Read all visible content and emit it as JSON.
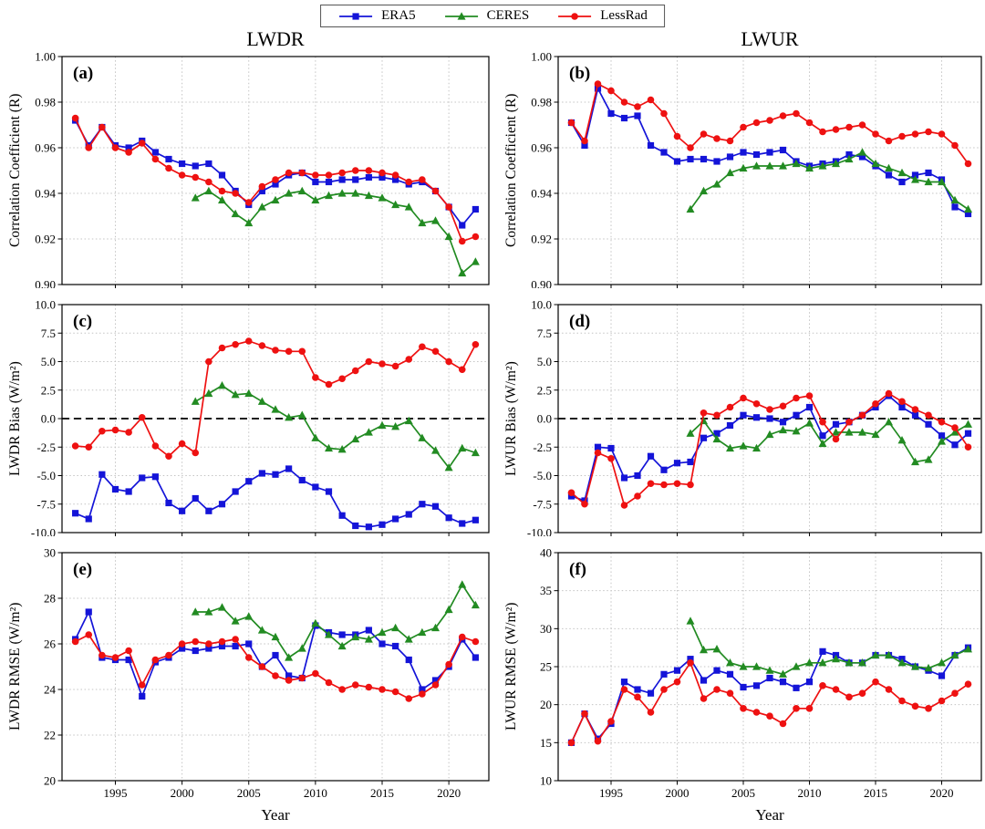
{
  "figure": {
    "legend": {
      "items": [
        {
          "label": "ERA5",
          "color": "#1414D8",
          "marker": "square"
        },
        {
          "label": "CERES",
          "color": "#228B22",
          "marker": "triangle"
        },
        {
          "label": "LessRad",
          "color": "#EE1111",
          "marker": "circle"
        }
      ]
    },
    "column_titles": {
      "left": "LWDR",
      "right": "LWUR"
    },
    "xlabel": "Year"
  },
  "chart_data": [
    {
      "type": "line",
      "panel_label": "(a)",
      "title": "LWDR",
      "ylabel": "Correlation Coefficient (R)",
      "xlabel": "",
      "ylim": [
        0.9,
        1.0
      ],
      "yticks": [
        0.9,
        0.92,
        0.94,
        0.96,
        0.98,
        1.0
      ],
      "y_decimals": 2,
      "xlim": [
        1991,
        2023
      ],
      "xticks": [
        1995,
        2000,
        2005,
        2010,
        2015,
        2020
      ],
      "show_x_tick_labels": false,
      "zero_line": false,
      "grid": true,
      "series": [
        {
          "name": "ERA5",
          "color": "#1414D8",
          "marker": "square",
          "x_start": 1992,
          "values": [
            0.972,
            0.961,
            0.969,
            0.961,
            0.96,
            0.963,
            0.958,
            0.955,
            0.953,
            0.952,
            0.953,
            0.948,
            0.941,
            0.935,
            0.941,
            0.944,
            0.948,
            0.949,
            0.945,
            0.945,
            0.946,
            0.946,
            0.947,
            0.947,
            0.946,
            0.944,
            0.945,
            0.941,
            0.934,
            0.926,
            0.933
          ]
        },
        {
          "name": "CERES",
          "color": "#228B22",
          "marker": "triangle",
          "x_start": 2001,
          "values": [
            0.938,
            0.941,
            0.937,
            0.931,
            0.927,
            0.934,
            0.937,
            0.94,
            0.941,
            0.937,
            0.939,
            0.94,
            0.94,
            0.939,
            0.938,
            0.935,
            0.934,
            0.927,
            0.928,
            0.921,
            0.905,
            0.91
          ]
        },
        {
          "name": "LessRad",
          "color": "#EE1111",
          "marker": "circle",
          "x_start": 1992,
          "values": [
            0.973,
            0.96,
            0.969,
            0.96,
            0.958,
            0.962,
            0.955,
            0.951,
            0.948,
            0.947,
            0.945,
            0.941,
            0.94,
            0.936,
            0.943,
            0.946,
            0.949,
            0.949,
            0.948,
            0.948,
            0.949,
            0.95,
            0.95,
            0.949,
            0.948,
            0.945,
            0.946,
            0.941,
            0.934,
            0.919,
            0.921
          ]
        }
      ]
    },
    {
      "type": "line",
      "panel_label": "(b)",
      "title": "LWUR",
      "ylabel": "Correlation Coefficient (R)",
      "xlabel": "",
      "ylim": [
        0.9,
        1.0
      ],
      "yticks": [
        0.9,
        0.92,
        0.94,
        0.96,
        0.98,
        1.0
      ],
      "y_decimals": 2,
      "xlim": [
        1991,
        2023
      ],
      "xticks": [
        1995,
        2000,
        2005,
        2010,
        2015,
        2020
      ],
      "show_x_tick_labels": false,
      "zero_line": false,
      "grid": true,
      "series": [
        {
          "name": "ERA5",
          "color": "#1414D8",
          "marker": "square",
          "x_start": 1992,
          "values": [
            0.971,
            0.961,
            0.986,
            0.975,
            0.973,
            0.974,
            0.961,
            0.958,
            0.954,
            0.955,
            0.955,
            0.954,
            0.956,
            0.958,
            0.957,
            0.958,
            0.959,
            0.954,
            0.952,
            0.953,
            0.954,
            0.957,
            0.956,
            0.952,
            0.948,
            0.945,
            0.948,
            0.949,
            0.946,
            0.934,
            0.931
          ]
        },
        {
          "name": "CERES",
          "color": "#228B22",
          "marker": "triangle",
          "x_start": 2001,
          "values": [
            0.933,
            0.941,
            0.944,
            0.949,
            0.951,
            0.952,
            0.952,
            0.952,
            0.953,
            0.951,
            0.952,
            0.953,
            0.955,
            0.958,
            0.953,
            0.951,
            0.949,
            0.946,
            0.945,
            0.945,
            0.937,
            0.933
          ]
        },
        {
          "name": "LessRad",
          "color": "#EE1111",
          "marker": "circle",
          "x_start": 1992,
          "values": [
            0.971,
            0.963,
            0.988,
            0.985,
            0.98,
            0.978,
            0.981,
            0.975,
            0.965,
            0.96,
            0.966,
            0.964,
            0.963,
            0.969,
            0.971,
            0.972,
            0.974,
            0.975,
            0.971,
            0.967,
            0.968,
            0.969,
            0.97,
            0.966,
            0.963,
            0.965,
            0.966,
            0.967,
            0.966,
            0.961,
            0.953
          ]
        }
      ]
    },
    {
      "type": "line",
      "panel_label": "(c)",
      "title": "LWDR",
      "ylabel": "LWDR Bias (W/m²)",
      "xlabel": "",
      "ylim": [
        -10.0,
        10.0
      ],
      "yticks": [
        -10.0,
        -7.5,
        -5.0,
        -2.5,
        0.0,
        2.5,
        5.0,
        7.5,
        10.0
      ],
      "y_decimals": 1,
      "xlim": [
        1991,
        2023
      ],
      "xticks": [
        1995,
        2000,
        2005,
        2010,
        2015,
        2020
      ],
      "show_x_tick_labels": false,
      "zero_line": true,
      "grid": true,
      "series": [
        {
          "name": "ERA5",
          "color": "#1414D8",
          "marker": "square",
          "x_start": 1992,
          "values": [
            -8.3,
            -8.8,
            -4.9,
            -6.2,
            -6.4,
            -5.2,
            -5.1,
            -7.4,
            -8.1,
            -7.0,
            -8.1,
            -7.5,
            -6.4,
            -5.5,
            -4.8,
            -4.9,
            -4.4,
            -5.4,
            -6.0,
            -6.4,
            -8.5,
            -9.4,
            -9.5,
            -9.3,
            -8.8,
            -8.4,
            -7.5,
            -7.7,
            -8.7,
            -9.2,
            -8.9
          ]
        },
        {
          "name": "CERES",
          "color": "#228B22",
          "marker": "triangle",
          "x_start": 2001,
          "values": [
            1.5,
            2.2,
            2.9,
            2.1,
            2.2,
            1.5,
            0.8,
            0.1,
            0.3,
            -1.7,
            -2.6,
            -2.7,
            -1.8,
            -1.2,
            -0.6,
            -0.7,
            -0.2,
            -1.7,
            -2.8,
            -4.3,
            -2.6,
            -3.0
          ]
        },
        {
          "name": "LessRad",
          "color": "#EE1111",
          "marker": "circle",
          "x_start": 1992,
          "values": [
            -2.4,
            -2.5,
            -1.1,
            -1.0,
            -1.2,
            0.1,
            -2.4,
            -3.3,
            -2.2,
            -3.0,
            5.0,
            6.2,
            6.5,
            6.8,
            6.4,
            6.0,
            5.9,
            5.9,
            3.6,
            3.0,
            3.5,
            4.2,
            5.0,
            4.8,
            4.6,
            5.2,
            6.3,
            5.9,
            5.0,
            4.3,
            6.5
          ]
        }
      ]
    },
    {
      "type": "line",
      "panel_label": "(d)",
      "title": "LWUR",
      "ylabel": "LWUR Bias (W/m²)",
      "xlabel": "",
      "ylim": [
        -10.0,
        10.0
      ],
      "yticks": [
        -10.0,
        -7.5,
        -5.0,
        -2.5,
        0.0,
        2.5,
        5.0,
        7.5,
        10.0
      ],
      "y_decimals": 1,
      "xlim": [
        1991,
        2023
      ],
      "xticks": [
        1995,
        2000,
        2005,
        2010,
        2015,
        2020
      ],
      "show_x_tick_labels": false,
      "zero_line": true,
      "grid": true,
      "series": [
        {
          "name": "ERA5",
          "color": "#1414D8",
          "marker": "square",
          "x_start": 1992,
          "values": [
            -6.8,
            -7.2,
            -2.5,
            -2.6,
            -5.2,
            -5.0,
            -3.3,
            -4.5,
            -3.9,
            -3.8,
            -1.7,
            -1.3,
            -0.6,
            0.3,
            0.1,
            0.0,
            -0.3,
            0.3,
            1.0,
            -1.5,
            -0.5,
            -0.3,
            0.3,
            1.0,
            2.0,
            1.0,
            0.3,
            -0.5,
            -1.5,
            -2.3,
            -1.3
          ]
        },
        {
          "name": "CERES",
          "color": "#228B22",
          "marker": "triangle",
          "x_start": 2001,
          "values": [
            -1.3,
            -0.2,
            -1.8,
            -2.6,
            -2.4,
            -2.6,
            -1.4,
            -1.0,
            -1.1,
            -0.4,
            -2.2,
            -1.2,
            -1.2,
            -1.2,
            -1.4,
            -0.3,
            -1.9,
            -3.8,
            -3.6,
            -2.0,
            -1.2,
            -0.5
          ]
        },
        {
          "name": "LessRad",
          "color": "#EE1111",
          "marker": "circle",
          "x_start": 1992,
          "values": [
            -6.5,
            -7.5,
            -3.0,
            -3.5,
            -7.6,
            -6.8,
            -5.7,
            -5.8,
            -5.7,
            -5.8,
            0.5,
            0.3,
            1.0,
            1.8,
            1.3,
            0.8,
            1.1,
            1.8,
            2.0,
            -0.3,
            -1.8,
            -0.3,
            0.3,
            1.3,
            2.2,
            1.5,
            0.8,
            0.3,
            -0.3,
            -0.8,
            -2.5
          ]
        }
      ]
    },
    {
      "type": "line",
      "panel_label": "(e)",
      "title": "LWDR",
      "ylabel": "LWDR RMSE (W/m²)",
      "xlabel": "Year",
      "ylim": [
        20,
        30
      ],
      "yticks": [
        20,
        22,
        24,
        26,
        28,
        30
      ],
      "y_decimals": 0,
      "xlim": [
        1991,
        2023
      ],
      "xticks": [
        1995,
        2000,
        2005,
        2010,
        2015,
        2020
      ],
      "show_x_tick_labels": true,
      "zero_line": false,
      "grid": true,
      "series": [
        {
          "name": "ERA5",
          "color": "#1414D8",
          "marker": "square",
          "x_start": 1992,
          "values": [
            26.2,
            27.4,
            25.4,
            25.3,
            25.3,
            23.7,
            25.2,
            25.4,
            25.8,
            25.7,
            25.8,
            25.9,
            25.9,
            26.0,
            25.0,
            25.5,
            24.6,
            24.5,
            26.8,
            26.5,
            26.4,
            26.4,
            26.6,
            26.0,
            25.9,
            25.3,
            24.0,
            24.4,
            25.0,
            26.2,
            25.4
          ]
        },
        {
          "name": "CERES",
          "color": "#228B22",
          "marker": "triangle",
          "x_start": 2001,
          "values": [
            27.4,
            27.4,
            27.6,
            27.0,
            27.2,
            26.6,
            26.3,
            25.4,
            25.8,
            26.9,
            26.4,
            25.9,
            26.3,
            26.2,
            26.5,
            26.7,
            26.2,
            26.5,
            26.7,
            27.5,
            28.6,
            27.7
          ]
        },
        {
          "name": "LessRad",
          "color": "#EE1111",
          "marker": "circle",
          "x_start": 1992,
          "values": [
            26.1,
            26.4,
            25.5,
            25.4,
            25.7,
            24.2,
            25.3,
            25.5,
            26.0,
            26.1,
            26.0,
            26.1,
            26.2,
            25.4,
            25.0,
            24.6,
            24.4,
            24.5,
            24.7,
            24.3,
            24.0,
            24.2,
            24.1,
            24.0,
            23.9,
            23.6,
            23.8,
            24.2,
            25.1,
            26.3,
            26.1
          ]
        }
      ]
    },
    {
      "type": "line",
      "panel_label": "(f)",
      "title": "LWUR",
      "ylabel": "LWUR RMSE (W/m²)",
      "xlabel": "Year",
      "ylim": [
        10,
        40
      ],
      "yticks": [
        10,
        15,
        20,
        25,
        30,
        35,
        40
      ],
      "y_decimals": 0,
      "xlim": [
        1991,
        2023
      ],
      "xticks": [
        1995,
        2000,
        2005,
        2010,
        2015,
        2020
      ],
      "show_x_tick_labels": true,
      "zero_line": false,
      "grid": true,
      "series": [
        {
          "name": "ERA5",
          "color": "#1414D8",
          "marker": "square",
          "x_start": 1992,
          "values": [
            15.0,
            18.8,
            15.5,
            17.5,
            23.0,
            22.0,
            21.5,
            24.0,
            24.5,
            26.0,
            23.2,
            24.5,
            24.0,
            22.3,
            22.5,
            23.5,
            23.0,
            22.2,
            23.0,
            27.0,
            26.5,
            25.5,
            25.5,
            26.5,
            26.5,
            26.0,
            25.0,
            24.5,
            23.8,
            26.5,
            27.5
          ]
        },
        {
          "name": "CERES",
          "color": "#228B22",
          "marker": "triangle",
          "x_start": 2001,
          "values": [
            31.0,
            27.2,
            27.3,
            25.5,
            25.0,
            25.0,
            24.5,
            24.0,
            25.0,
            25.5,
            25.5,
            26.0,
            25.5,
            25.5,
            26.5,
            26.5,
            25.5,
            25.0,
            24.8,
            25.5,
            26.5,
            27.3
          ]
        },
        {
          "name": "LessRad",
          "color": "#EE1111",
          "marker": "circle",
          "x_start": 1992,
          "values": [
            15.0,
            18.8,
            15.2,
            17.8,
            22.0,
            21.0,
            19.0,
            22.0,
            23.0,
            25.5,
            20.8,
            22.0,
            21.5,
            19.5,
            19.0,
            18.5,
            17.5,
            19.5,
            19.5,
            22.5,
            22.0,
            21.0,
            21.5,
            23.0,
            22.0,
            20.5,
            19.8,
            19.5,
            20.5,
            21.5,
            22.7
          ]
        }
      ]
    }
  ]
}
